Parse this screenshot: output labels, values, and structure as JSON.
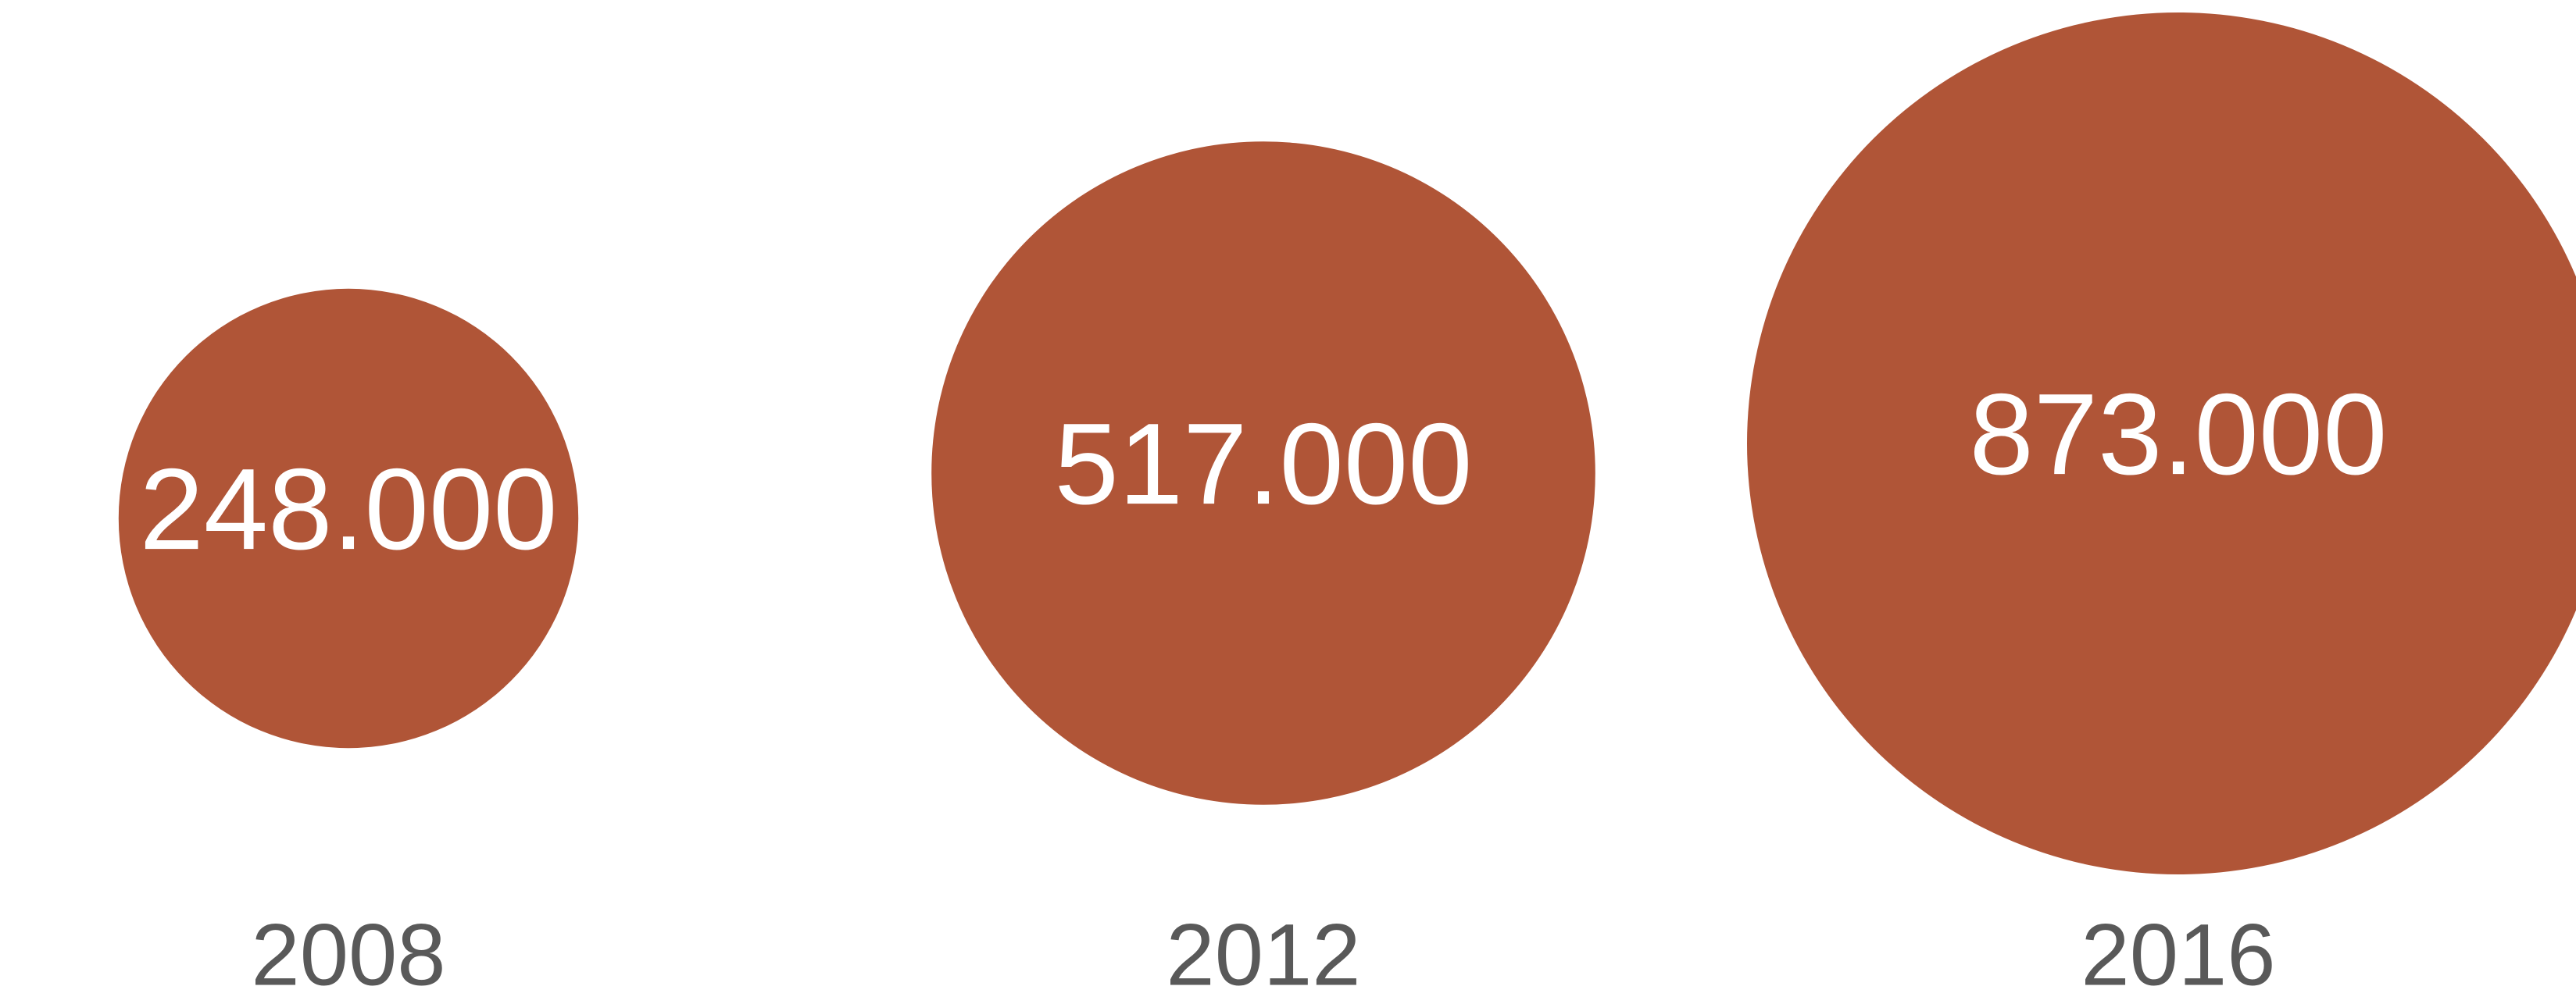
{
  "colors": {
    "bubble": "#b05537",
    "value_text": "#ffffff",
    "year_text": "#595959",
    "background": "#ffffff"
  },
  "chart_data": {
    "type": "bubble",
    "categories": [
      "2008",
      "2012",
      "2016"
    ],
    "values": [
      248000,
      517000,
      873000
    ],
    "value_labels": [
      "248.000",
      "517.000",
      "873.000"
    ],
    "grid": false,
    "legend": "none"
  }
}
